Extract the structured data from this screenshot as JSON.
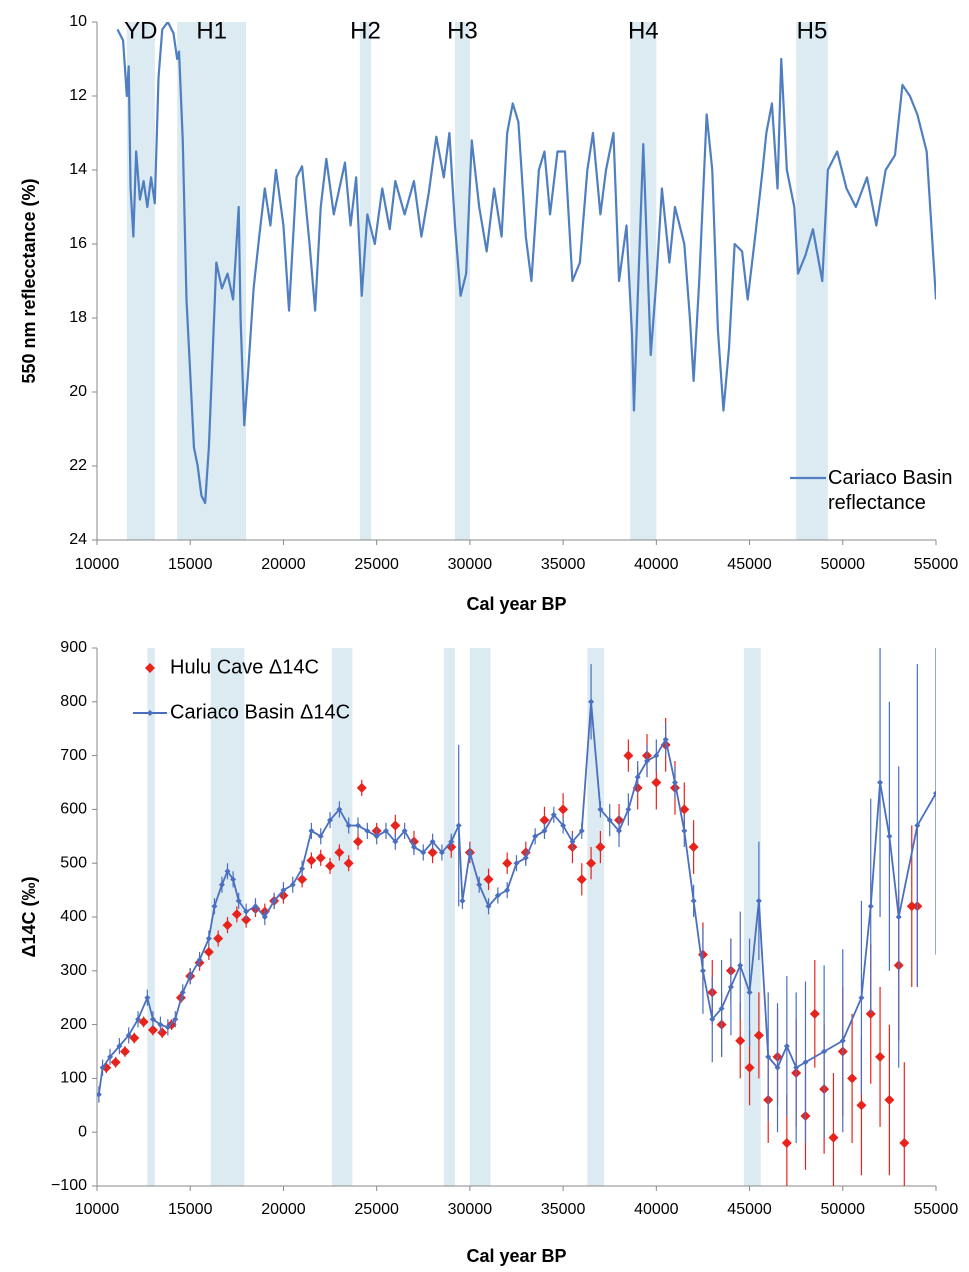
{
  "chart_data": [
    {
      "type": "line",
      "y_label": "550 nm reflecctance (%)",
      "x_label": "Cal year BP",
      "xlim": [
        10000,
        55000
      ],
      "xticks": [
        10000,
        15000,
        20000,
        25000,
        30000,
        35000,
        40000,
        45000,
        50000,
        55000
      ],
      "ylim": [
        24,
        10
      ],
      "yticks": [
        10,
        12,
        14,
        16,
        18,
        20,
        22,
        24
      ],
      "band_color": "#dceaf1",
      "legend_position": "lower right",
      "bands": [
        {
          "label": "YD",
          "start": 11600,
          "end": 13100
        },
        {
          "label": "H1",
          "start": 14300,
          "end": 18000
        },
        {
          "label": "H2",
          "start": 24100,
          "end": 24700
        },
        {
          "label": "H3",
          "start": 29200,
          "end": 30000
        },
        {
          "label": "H4",
          "start": 38600,
          "end": 40000
        },
        {
          "label": "H5",
          "start": 47500,
          "end": 49200
        }
      ],
      "series": [
        {
          "name": "Cariaco Basin reflectance",
          "color": "#4f7fc0",
          "x": [
            11100,
            11400,
            11600,
            11700,
            11800,
            11950,
            12100,
            12300,
            12500,
            12700,
            12900,
            13100,
            13300,
            13500,
            13800,
            14100,
            14300,
            14400,
            14600,
            14800,
            15000,
            15200,
            15400,
            15600,
            15800,
            16000,
            16200,
            16400,
            16700,
            17000,
            17300,
            17600,
            17700,
            17900,
            18100,
            18400,
            18700,
            19000,
            19300,
            19600,
            20000,
            20300,
            20700,
            21000,
            21400,
            21700,
            22000,
            22300,
            22700,
            23000,
            23300,
            23600,
            23900,
            24200,
            24500,
            24900,
            25300,
            25700,
            26000,
            26500,
            27000,
            27400,
            27800,
            28200,
            28600,
            28900,
            29200,
            29500,
            29800,
            30100,
            30500,
            30900,
            31300,
            31700,
            32000,
            32300,
            32600,
            33000,
            33300,
            33700,
            34000,
            34300,
            34700,
            35100,
            35500,
            35900,
            36300,
            36600,
            37000,
            37300,
            37700,
            38000,
            38400,
            38700,
            38800,
            39000,
            39300,
            39700,
            40000,
            40300,
            40700,
            41000,
            41500,
            41800,
            42000,
            42300,
            42700,
            43000,
            43300,
            43600,
            43900,
            44200,
            44600,
            44900,
            45300,
            45700,
            45900,
            46200,
            46500,
            46700,
            47000,
            47400,
            47600,
            48000,
            48400,
            48900,
            49200,
            49700,
            50200,
            50700,
            51300,
            51800,
            52300,
            52800,
            53200,
            53600,
            54000,
            54500,
            55000
          ],
          "values": [
            10.2,
            10.5,
            12.0,
            11.2,
            14.5,
            15.8,
            13.5,
            14.8,
            14.3,
            15.0,
            14.2,
            14.9,
            11.5,
            10.2,
            10.0,
            10.3,
            11.0,
            10.8,
            13.2,
            17.5,
            19.5,
            21.5,
            22.0,
            22.8,
            23.0,
            21.5,
            19.0,
            16.5,
            17.2,
            16.8,
            17.5,
            15.0,
            18.0,
            20.9,
            19.5,
            17.2,
            15.8,
            14.5,
            15.5,
            14.0,
            15.5,
            17.8,
            14.2,
            13.9,
            16.0,
            17.8,
            15.0,
            13.7,
            15.2,
            14.5,
            13.8,
            15.5,
            14.2,
            17.4,
            15.2,
            16.0,
            14.5,
            15.6,
            14.3,
            15.2,
            14.3,
            15.8,
            14.6,
            13.1,
            14.2,
            13.0,
            15.5,
            17.4,
            16.8,
            13.2,
            15.0,
            16.2,
            14.5,
            15.8,
            13.0,
            12.2,
            12.7,
            15.8,
            17.0,
            14.0,
            13.5,
            15.2,
            13.5,
            13.5,
            17.0,
            16.5,
            14.0,
            13.0,
            15.2,
            14.0,
            13.0,
            17.0,
            15.5,
            18.5,
            20.5,
            17.5,
            13.3,
            19.0,
            17.0,
            14.5,
            16.5,
            15.0,
            16.0,
            18.0,
            19.7,
            17.0,
            12.5,
            14.0,
            18.3,
            20.5,
            18.8,
            16.0,
            16.2,
            17.5,
            15.8,
            14.0,
            13.0,
            12.2,
            14.5,
            11.0,
            14.0,
            15.0,
            16.8,
            16.3,
            15.6,
            17.0,
            14.0,
            13.5,
            14.5,
            15.0,
            14.2,
            15.5,
            14.0,
            13.6,
            11.7,
            12.0,
            12.5,
            13.5,
            17.5
          ]
        }
      ]
    },
    {
      "type": "line",
      "y_label": "Δ14C (‰)",
      "x_label": "Cal year BP",
      "xlim": [
        10000,
        55000
      ],
      "xticks": [
        10000,
        15000,
        20000,
        25000,
        30000,
        35000,
        40000,
        45000,
        50000,
        55000
      ],
      "ylim": [
        -100,
        900
      ],
      "yticks": [
        {
          "value": -100,
          "label": "−100"
        },
        0,
        100,
        200,
        300,
        400,
        500,
        600,
        700,
        800,
        900
      ],
      "band_color": "#dceaf1",
      "legend_position": "upper left",
      "bands": [
        {
          "start": 12700,
          "end": 13100
        },
        {
          "start": 16100,
          "end": 17900
        },
        {
          "start": 22600,
          "end": 23700
        },
        {
          "start": 28600,
          "end": 29200
        },
        {
          "start": 30000,
          "end": 31100
        },
        {
          "start": 36300,
          "end": 37200
        },
        {
          "start": 44700,
          "end": 45600
        }
      ],
      "series": [
        {
          "name": "Hulu Cave Δ14C",
          "type": "scatter",
          "color": "#e8231c",
          "x": [
            10500,
            11000,
            11500,
            12000,
            12500,
            13000,
            13500,
            14000,
            14500,
            15000,
            15500,
            16000,
            16500,
            17000,
            17500,
            18000,
            18500,
            19000,
            19500,
            20000,
            21000,
            21500,
            22000,
            22500,
            23000,
            23500,
            24000,
            24200,
            25000,
            26000,
            27000,
            28000,
            29000,
            30000,
            31000,
            32000,
            33000,
            34000,
            35000,
            35500,
            36000,
            36500,
            37000,
            38000,
            38500,
            39000,
            39500,
            40000,
            40500,
            41000,
            41500,
            42000,
            42500,
            43000,
            43500,
            44000,
            44500,
            45000,
            45500,
            46000,
            46500,
            47000,
            47500,
            48000,
            48500,
            49000,
            49500,
            50000,
            50500,
            51000,
            51500,
            52000,
            52500,
            53000,
            53300,
            53700,
            54000
          ],
          "values": [
            120,
            130,
            150,
            175,
            205,
            190,
            185,
            200,
            250,
            290,
            315,
            335,
            360,
            385,
            405,
            395,
            415,
            410,
            430,
            440,
            470,
            505,
            510,
            495,
            520,
            500,
            540,
            640,
            560,
            570,
            540,
            520,
            530,
            520,
            470,
            500,
            520,
            580,
            600,
            530,
            470,
            500,
            530,
            580,
            700,
            640,
            700,
            650,
            720,
            640,
            600,
            530,
            330,
            260,
            200,
            300,
            170,
            120,
            180,
            60,
            140,
            -20,
            110,
            30,
            220,
            80,
            -10,
            150,
            100,
            50,
            220,
            140,
            60,
            310,
            -20,
            420,
            420
          ],
          "errors": [
            10,
            10,
            10,
            10,
            10,
            10,
            10,
            10,
            10,
            15,
            15,
            15,
            15,
            15,
            15,
            15,
            15,
            15,
            15,
            15,
            15,
            15,
            15,
            15,
            15,
            15,
            15,
            15,
            15,
            20,
            20,
            20,
            20,
            20,
            20,
            20,
            20,
            25,
            30,
            30,
            30,
            30,
            30,
            30,
            30,
            40,
            40,
            50,
            50,
            50,
            50,
            50,
            60,
            60,
            60,
            60,
            70,
            70,
            80,
            80,
            90,
            90,
            100,
            100,
            100,
            120,
            120,
            120,
            120,
            130,
            130,
            130,
            140,
            140,
            150,
            150,
            150
          ]
        },
        {
          "name": "Cariaco Basin Δ14C",
          "type": "line",
          "color": "#4a6fc0",
          "x": [
            10100,
            10300,
            10700,
            11200,
            11700,
            12200,
            12700,
            13000,
            13400,
            13800,
            14200,
            14600,
            15000,
            15500,
            16000,
            16300,
            16700,
            17000,
            17300,
            17600,
            18000,
            18500,
            19000,
            19500,
            20000,
            20500,
            21000,
            21500,
            22000,
            22500,
            23000,
            23500,
            24000,
            24500,
            25000,
            25500,
            26000,
            26500,
            27000,
            27500,
            28000,
            28500,
            29000,
            29400,
            29600,
            30000,
            30500,
            31000,
            31500,
            32000,
            32500,
            33000,
            33500,
            34000,
            34500,
            35000,
            35500,
            36000,
            36500,
            37000,
            37500,
            38000,
            38500,
            39000,
            39500,
            40000,
            40500,
            41000,
            41500,
            42000,
            42500,
            43000,
            43500,
            44000,
            44500,
            45000,
            45500,
            46000,
            46500,
            47000,
            47500,
            48000,
            49000,
            50000,
            51000,
            51500,
            52000,
            52500,
            53000,
            54000,
            55000
          ],
          "values": [
            70,
            120,
            140,
            160,
            180,
            210,
            250,
            210,
            200,
            195,
            210,
            260,
            290,
            320,
            360,
            420,
            460,
            485,
            470,
            430,
            410,
            420,
            400,
            430,
            450,
            460,
            490,
            560,
            550,
            580,
            600,
            570,
            570,
            560,
            550,
            560,
            540,
            560,
            530,
            520,
            540,
            520,
            540,
            570,
            430,
            520,
            460,
            420,
            440,
            450,
            500,
            510,
            550,
            560,
            590,
            570,
            540,
            560,
            800,
            600,
            580,
            560,
            600,
            660,
            690,
            700,
            730,
            650,
            560,
            430,
            300,
            210,
            230,
            270,
            310,
            260,
            430,
            140,
            120,
            160,
            120,
            130,
            150,
            170,
            250,
            420,
            650,
            550,
            400,
            570,
            630
          ],
          "errors": [
            15,
            15,
            15,
            15,
            15,
            15,
            15,
            15,
            15,
            15,
            15,
            15,
            15,
            15,
            15,
            15,
            15,
            15,
            15,
            15,
            15,
            15,
            15,
            15,
            15,
            15,
            15,
            15,
            15,
            15,
            15,
            15,
            15,
            15,
            15,
            15,
            15,
            15,
            15,
            15,
            15,
            15,
            15,
            150,
            15,
            15,
            15,
            15,
            15,
            15,
            15,
            15,
            15,
            15,
            15,
            15,
            15,
            15,
            70,
            15,
            30,
            30,
            30,
            30,
            30,
            30,
            30,
            30,
            30,
            30,
            80,
            80,
            90,
            90,
            100,
            100,
            110,
            120,
            120,
            130,
            140,
            150,
            160,
            170,
            180,
            200,
            250,
            250,
            280,
            300,
            300
          ]
        }
      ]
    }
  ]
}
